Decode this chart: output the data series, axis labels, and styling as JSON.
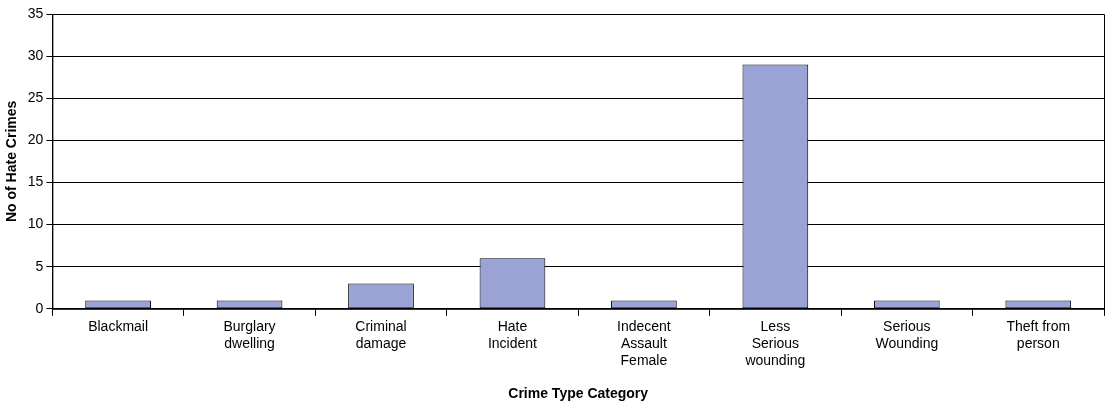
{
  "chart_data": {
    "type": "bar",
    "xlabel": "Crime Type Category",
    "ylabel": "No of Hate Crimes",
    "categories": [
      "Blackmail",
      "Burglary dwelling",
      "Criminal damage",
      "Hate Incident",
      "Indecent Assault Female",
      "Less Serious wounding",
      "Serious Wounding",
      "Theft from person"
    ],
    "values": [
      1,
      1,
      3,
      6,
      1,
      29,
      1,
      1
    ],
    "color": "#99a3d6",
    "ylim": [
      0,
      35
    ],
    "yticks": [
      0,
      5,
      10,
      15,
      20,
      25,
      30,
      35
    ],
    "grid": "y",
    "legend": false
  }
}
